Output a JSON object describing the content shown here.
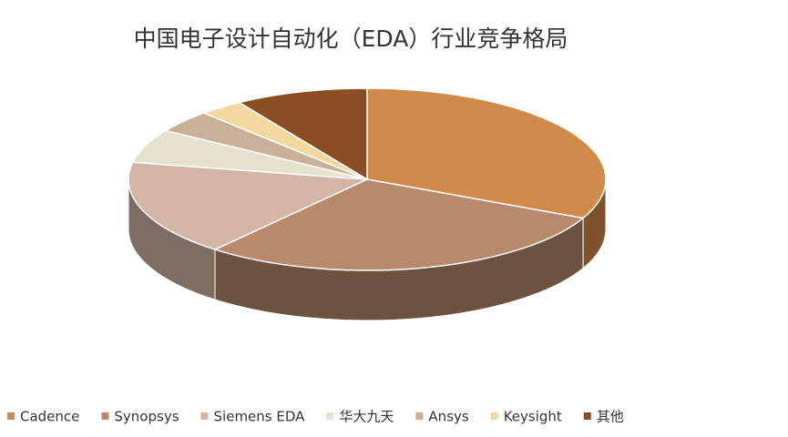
{
  "chart_data": {
    "type": "pie",
    "title": "中国电子设计自动化（EDA）行业竞争格局",
    "categories": [
      "Cadence",
      "Synopsys",
      "Siemens EDA",
      "华大九天",
      "Ansys",
      "Keysight",
      "其他"
    ],
    "values": [
      32,
      29,
      17,
      6,
      4,
      3,
      9
    ],
    "colors": [
      "#d08a4a",
      "#b8896a",
      "#d2b5a5",
      "#e6e0cf",
      "#c9b198",
      "#f3d8a0",
      "#8a4e22"
    ],
    "legend": "bottom"
  }
}
